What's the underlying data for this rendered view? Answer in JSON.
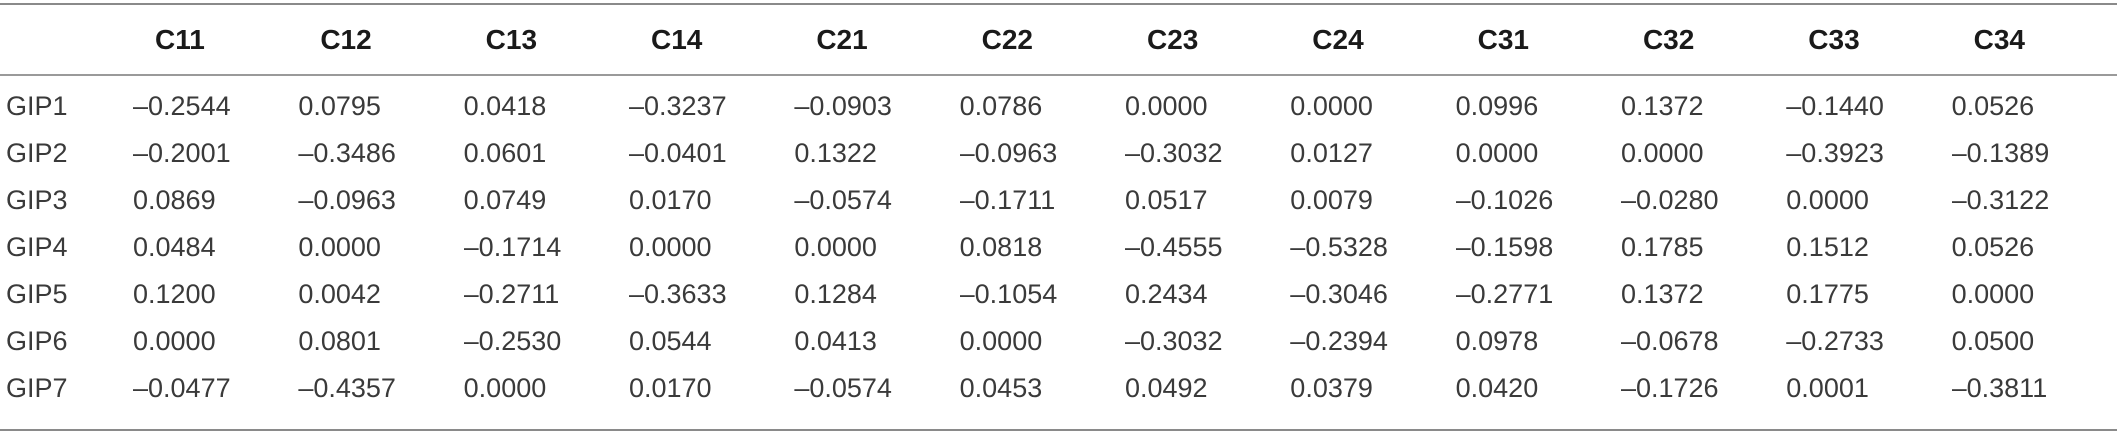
{
  "table": {
    "corner_label": "",
    "columns": [
      "C11",
      "C12",
      "C13",
      "C14",
      "C21",
      "C22",
      "C23",
      "C24",
      "C31",
      "C32",
      "C33",
      "C34"
    ],
    "rows": [
      {
        "label": "GIP1",
        "values": [
          "–0.2544",
          "0.0795",
          "0.0418",
          "–0.3237",
          "–0.0903",
          "0.0786",
          "0.0000",
          "0.0000",
          "0.0996",
          "0.1372",
          "–0.1440",
          "0.0526"
        ]
      },
      {
        "label": "GIP2",
        "values": [
          "–0.2001",
          "–0.3486",
          "0.0601",
          "–0.0401",
          "0.1322",
          "–0.0963",
          "–0.3032",
          "0.0127",
          "0.0000",
          "0.0000",
          "–0.3923",
          "–0.1389"
        ]
      },
      {
        "label": "GIP3",
        "values": [
          "0.0869",
          "–0.0963",
          "0.0749",
          "0.0170",
          "–0.0574",
          "–0.1711",
          "0.0517",
          "0.0079",
          "–0.1026",
          "–0.0280",
          "0.0000",
          "–0.3122"
        ]
      },
      {
        "label": "GIP4",
        "values": [
          "0.0484",
          "0.0000",
          "–0.1714",
          "0.0000",
          "0.0000",
          "0.0818",
          "–0.4555",
          "–0.5328",
          "–0.1598",
          "0.1785",
          "0.1512",
          "0.0526"
        ]
      },
      {
        "label": "GIP5",
        "values": [
          "0.1200",
          "0.0042",
          "–0.2711",
          "–0.3633",
          "0.1284",
          "–0.1054",
          "0.2434",
          "–0.3046",
          "–0.2771",
          "0.1372",
          "0.1775",
          "0.0000"
        ]
      },
      {
        "label": "GIP6",
        "values": [
          "0.0000",
          "0.0801",
          "–0.2530",
          "0.0544",
          "0.0413",
          "0.0000",
          "–0.3032",
          "–0.2394",
          "0.0978",
          "–0.0678",
          "–0.2733",
          "0.0500"
        ]
      },
      {
        "label": "GIP7",
        "values": [
          "–0.0477",
          "–0.4357",
          "0.0000",
          "0.0170",
          "–0.0574",
          "0.0453",
          "0.0492",
          "0.0379",
          "0.0420",
          "–0.1726",
          "0.0001",
          "–0.3811"
        ]
      }
    ]
  }
}
